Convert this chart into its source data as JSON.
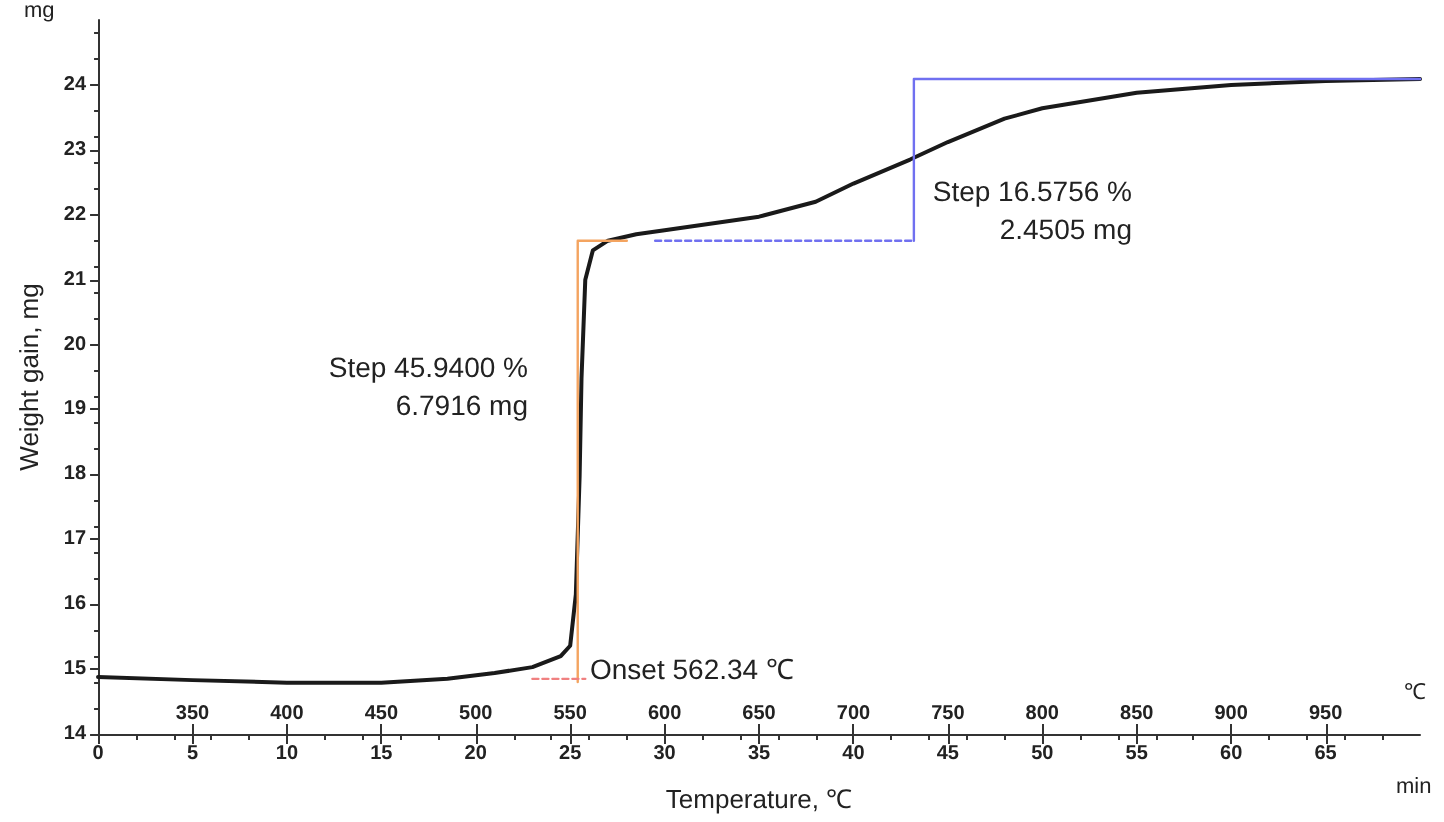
{
  "chart_data": {
    "type": "line",
    "xlabel": "Temperature, ℃",
    "ylabel": "Weight gain, mg",
    "xlim": [
      0,
      70
    ],
    "xticks": [
      0,
      5,
      10,
      15,
      20,
      25,
      30,
      35,
      40,
      45,
      50,
      55,
      60,
      65
    ],
    "x2lim": [
      300,
      1000
    ],
    "x2ticks": [
      350,
      400,
      450,
      500,
      550,
      600,
      650,
      700,
      750,
      800,
      850,
      900,
      950
    ],
    "ylim": [
      14,
      25
    ],
    "yticks": [
      14,
      15,
      16,
      17,
      18,
      19,
      20,
      21,
      22,
      23,
      24
    ],
    "grid": false,
    "marker": "none",
    "series": [
      {
        "color": "#1a1a1a",
        "line_style": "solid",
        "x": [
          0,
          5,
          10,
          15,
          18.5,
          21,
          23,
          24.5,
          25,
          25.3,
          25.5,
          25.6,
          25.8,
          26.2,
          27,
          28.5,
          30,
          35,
          38,
          40,
          43,
          45,
          48,
          50,
          55,
          60,
          65,
          70
        ],
        "values": [
          14.88,
          14.83,
          14.79,
          14.79,
          14.85,
          14.94,
          15.03,
          15.2,
          15.36,
          16.15,
          17.97,
          19.48,
          21.0,
          21.45,
          21.6,
          21.7,
          21.76,
          21.97,
          22.2,
          22.48,
          22.85,
          23.12,
          23.48,
          23.64,
          23.88,
          24.0,
          24.06,
          24.09
        ]
      },
      {
        "color": "#7070f0",
        "line_style": "solid",
        "x": [
          70,
          43.2,
          43.2
        ],
        "values": [
          24.09,
          24.09,
          21.6
        ]
      },
      {
        "color": "#7070f0",
        "line_style": "dashed",
        "x": [
          29.5,
          43.2
        ],
        "values": [
          21.6,
          21.6
        ]
      },
      {
        "color": "#f4a460",
        "line_style": "solid",
        "x": [
          25.4,
          25.4,
          28
        ],
        "values": [
          14.8,
          21.6,
          21.6
        ]
      },
      {
        "color": "#f08080",
        "line_style": "dashed",
        "x": [
          23,
          25.8
        ],
        "values": [
          14.85,
          14.85
        ]
      }
    ],
    "annotations": [
      "Step 45.9400 %\n6.7916 mg",
      "Onset 562.34 ℃",
      "Step 16.5756 %\n2.4505 mg",
      "mg",
      "℃",
      "min"
    ]
  }
}
